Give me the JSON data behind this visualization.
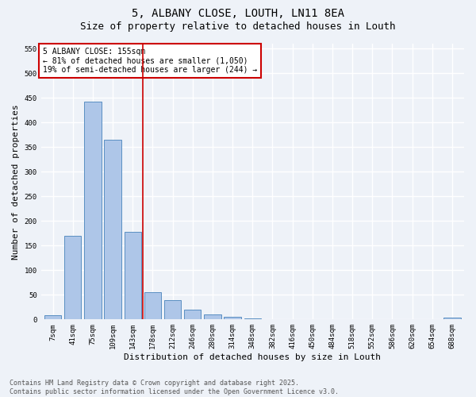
{
  "title1": "5, ALBANY CLOSE, LOUTH, LN11 8EA",
  "title2": "Size of property relative to detached houses in Louth",
  "xlabel": "Distribution of detached houses by size in Louth",
  "ylabel": "Number of detached properties",
  "categories": [
    "7sqm",
    "41sqm",
    "75sqm",
    "109sqm",
    "143sqm",
    "178sqm",
    "212sqm",
    "246sqm",
    "280sqm",
    "314sqm",
    "348sqm",
    "382sqm",
    "416sqm",
    "450sqm",
    "484sqm",
    "518sqm",
    "552sqm",
    "586sqm",
    "620sqm",
    "654sqm",
    "688sqm"
  ],
  "values": [
    8,
    170,
    443,
    365,
    178,
    55,
    40,
    20,
    11,
    6,
    2,
    0,
    0,
    0,
    1,
    0,
    0,
    0,
    0,
    1,
    3
  ],
  "bar_color": "#aec6e8",
  "bar_edge_color": "#5a8fc2",
  "vline_x": 4.5,
  "vline_color": "#cc0000",
  "annotation_text": "5 ALBANY CLOSE: 155sqm\n← 81% of detached houses are smaller (1,050)\n19% of semi-detached houses are larger (244) →",
  "annotation_box_color": "#ffffff",
  "annotation_box_edge": "#cc0000",
  "ylim": [
    0,
    560
  ],
  "yticks": [
    0,
    50,
    100,
    150,
    200,
    250,
    300,
    350,
    400,
    450,
    500,
    550
  ],
  "bg_color": "#eef2f8",
  "grid_color": "#ffffff",
  "footer_text": "Contains HM Land Registry data © Crown copyright and database right 2025.\nContains public sector information licensed under the Open Government Licence v3.0.",
  "title_fontsize": 10,
  "subtitle_fontsize": 9,
  "tick_fontsize": 6.5,
  "ylabel_fontsize": 8,
  "xlabel_fontsize": 8,
  "annotation_fontsize": 7,
  "footer_fontsize": 6
}
